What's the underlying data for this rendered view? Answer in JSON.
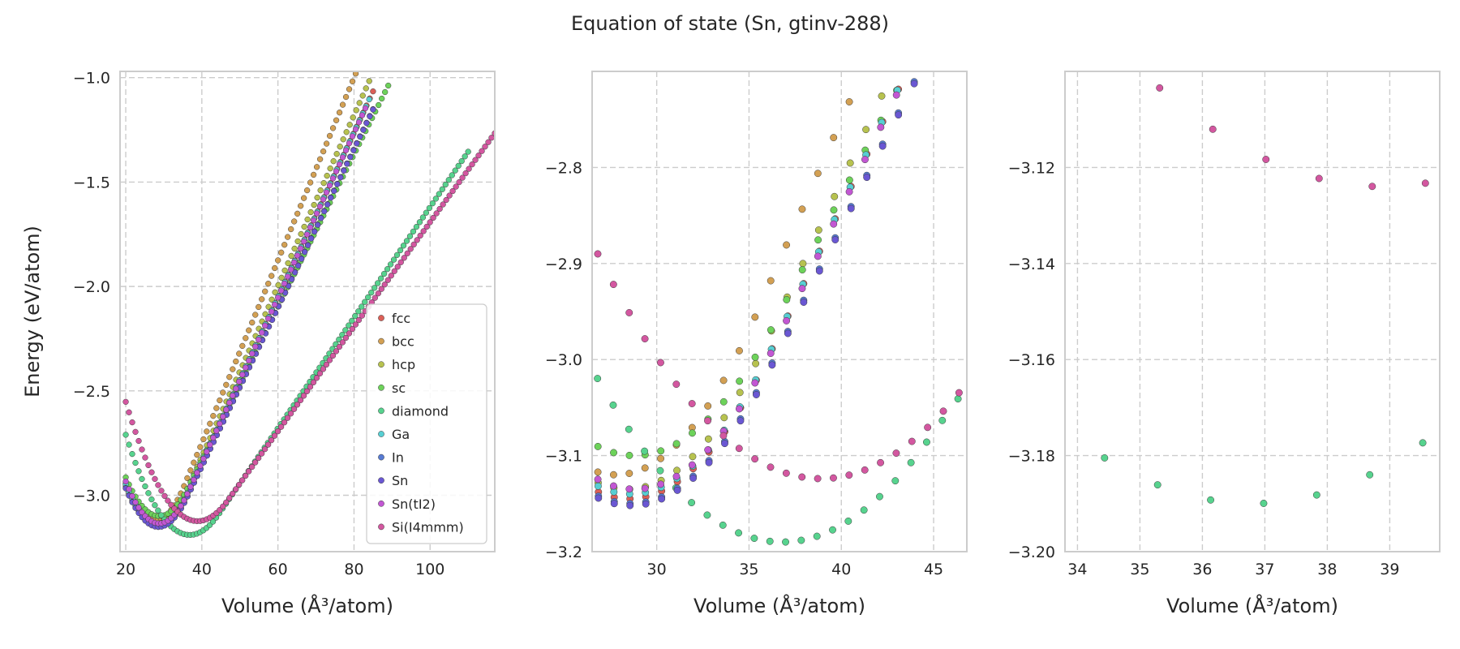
{
  "figure": {
    "title": "Equation of state (Sn, gtinv-288)"
  },
  "chart_data": [
    {
      "type": "scatter",
      "panel": "full",
      "xlabel": "Volume (Å³/atom)",
      "ylabel": "Energy (eV/atom)",
      "xlim": [
        18.5,
        117
      ],
      "ylim": [
        -3.27,
        -0.97
      ],
      "xticks": [
        20,
        40,
        60,
        80,
        100
      ],
      "yticks": [
        -1.0,
        -1.5,
        -2.0,
        -2.5,
        -3.0
      ],
      "legend_position": "lower-right",
      "series": [
        {
          "name": "fcc",
          "color": "#db5f57",
          "v0": 28.5,
          "e0": -3.145,
          "b": 0.0026,
          "x": [
            20,
            85
          ]
        },
        {
          "name": "bcc",
          "color": "#d3a053",
          "v0": 27.8,
          "e0": -3.12,
          "b": 0.0029,
          "x": [
            20,
            83
          ]
        },
        {
          "name": "hcp",
          "color": "#b7c24f",
          "v0": 28.4,
          "e0": -3.135,
          "b": 0.0027,
          "x": [
            20,
            84
          ]
        },
        {
          "name": "sc",
          "color": "#6dd25a",
          "v0": 28.8,
          "e0": -3.1,
          "b": 0.0024,
          "x": [
            20,
            89
          ]
        },
        {
          "name": "diamond",
          "color": "#57d38e",
          "v0": 36.8,
          "e0": -3.19,
          "b": 0.0017,
          "x": [
            20,
            110
          ]
        },
        {
          "name": "Ga",
          "color": "#57cfd3",
          "v0": 28.6,
          "e0": -3.14,
          "b": 0.0026,
          "x": [
            20,
            84
          ]
        },
        {
          "name": "In",
          "color": "#577bd3",
          "v0": 28.6,
          "e0": -3.15,
          "b": 0.0025,
          "x": [
            20,
            85
          ]
        },
        {
          "name": "Sn",
          "color": "#6a57d3",
          "v0": 28.6,
          "e0": -3.152,
          "b": 0.0025,
          "x": [
            20,
            85
          ]
        },
        {
          "name": "Sn(tI2)",
          "color": "#c257d3",
          "v0": 28.8,
          "e0": -3.135,
          "b": 0.0026,
          "x": [
            20,
            83
          ]
        },
        {
          "name": "Si(I4mmm)",
          "color": "#d357a0",
          "v0": 38.9,
          "e0": -3.124,
          "b": 0.0016,
          "x": [
            20,
            117
          ]
        }
      ]
    },
    {
      "type": "scatter",
      "panel": "zoom-1",
      "xlabel": "Volume (Å³/atom)",
      "xlim": [
        26.5,
        46.8
      ],
      "ylim": [
        -3.2,
        -2.7
      ],
      "xticks": [
        30,
        35,
        40,
        45
      ],
      "yticks": [
        -2.8,
        -2.9,
        -3.0,
        -3.1,
        -3.2
      ]
    },
    {
      "type": "scatter",
      "panel": "zoom-2",
      "xlabel": "Volume (Å³/atom)",
      "xlim": [
        33.8,
        39.8
      ],
      "ylim": [
        -3.2,
        -3.1
      ],
      "xticks": [
        34,
        35,
        36,
        37,
        38,
        39
      ],
      "yticks": [
        -3.12,
        -3.14,
        -3.16,
        -3.18,
        -3.2
      ]
    }
  ]
}
